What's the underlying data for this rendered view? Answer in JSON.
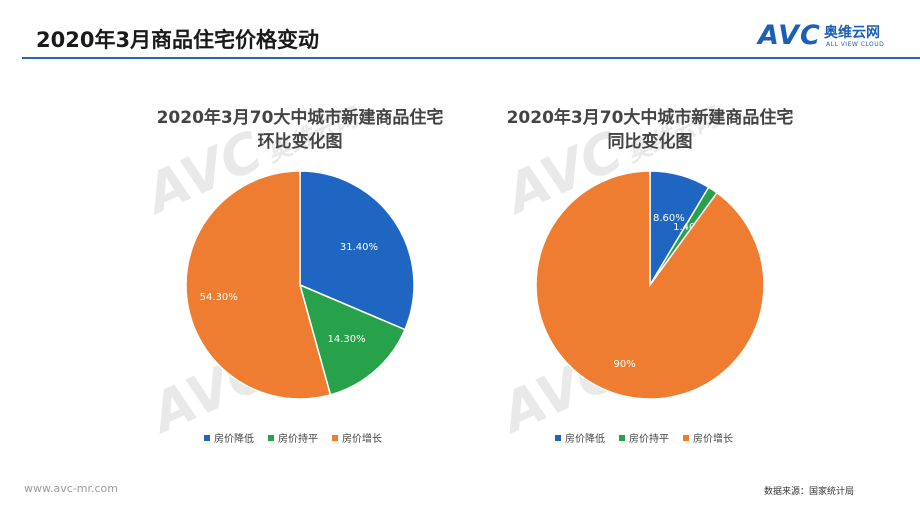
{
  "page": {
    "title": "2020年3月商品住宅价格变动",
    "url": "www.avc-mr.com",
    "source": "数据来源：国家统计局"
  },
  "logo": {
    "mark": "AVC",
    "cn": "奥维云网",
    "en": "ALL VIEW CLOUD"
  },
  "watermark": {
    "mark": "AVC",
    "cn": "奥维云网"
  },
  "colors": {
    "decline": "#1e66c1",
    "flat": "#27a24b",
    "increase": "#ee7d31",
    "accent": "#2b63b8"
  },
  "chart_data": [
    {
      "type": "pie",
      "title_line1": "2020年3月70大中城市新建商品住宅",
      "title_line2": "环比变化图",
      "categories": [
        "房价降低",
        "房价持平",
        "房价增长"
      ],
      "values": [
        31.4,
        14.3,
        54.3
      ],
      "labels": [
        "31.40%",
        "14.30%",
        "54.30%"
      ],
      "legend": "bottom"
    },
    {
      "type": "pie",
      "title_line1": "2020年3月70大中城市新建商品住宅",
      "title_line2": "同比变化图",
      "categories": [
        "房价降低",
        "房价持平",
        "房价增长"
      ],
      "values": [
        8.6,
        1.4,
        90
      ],
      "labels": [
        "8.60%",
        "1.40%",
        "90%"
      ],
      "legend": "bottom"
    }
  ]
}
